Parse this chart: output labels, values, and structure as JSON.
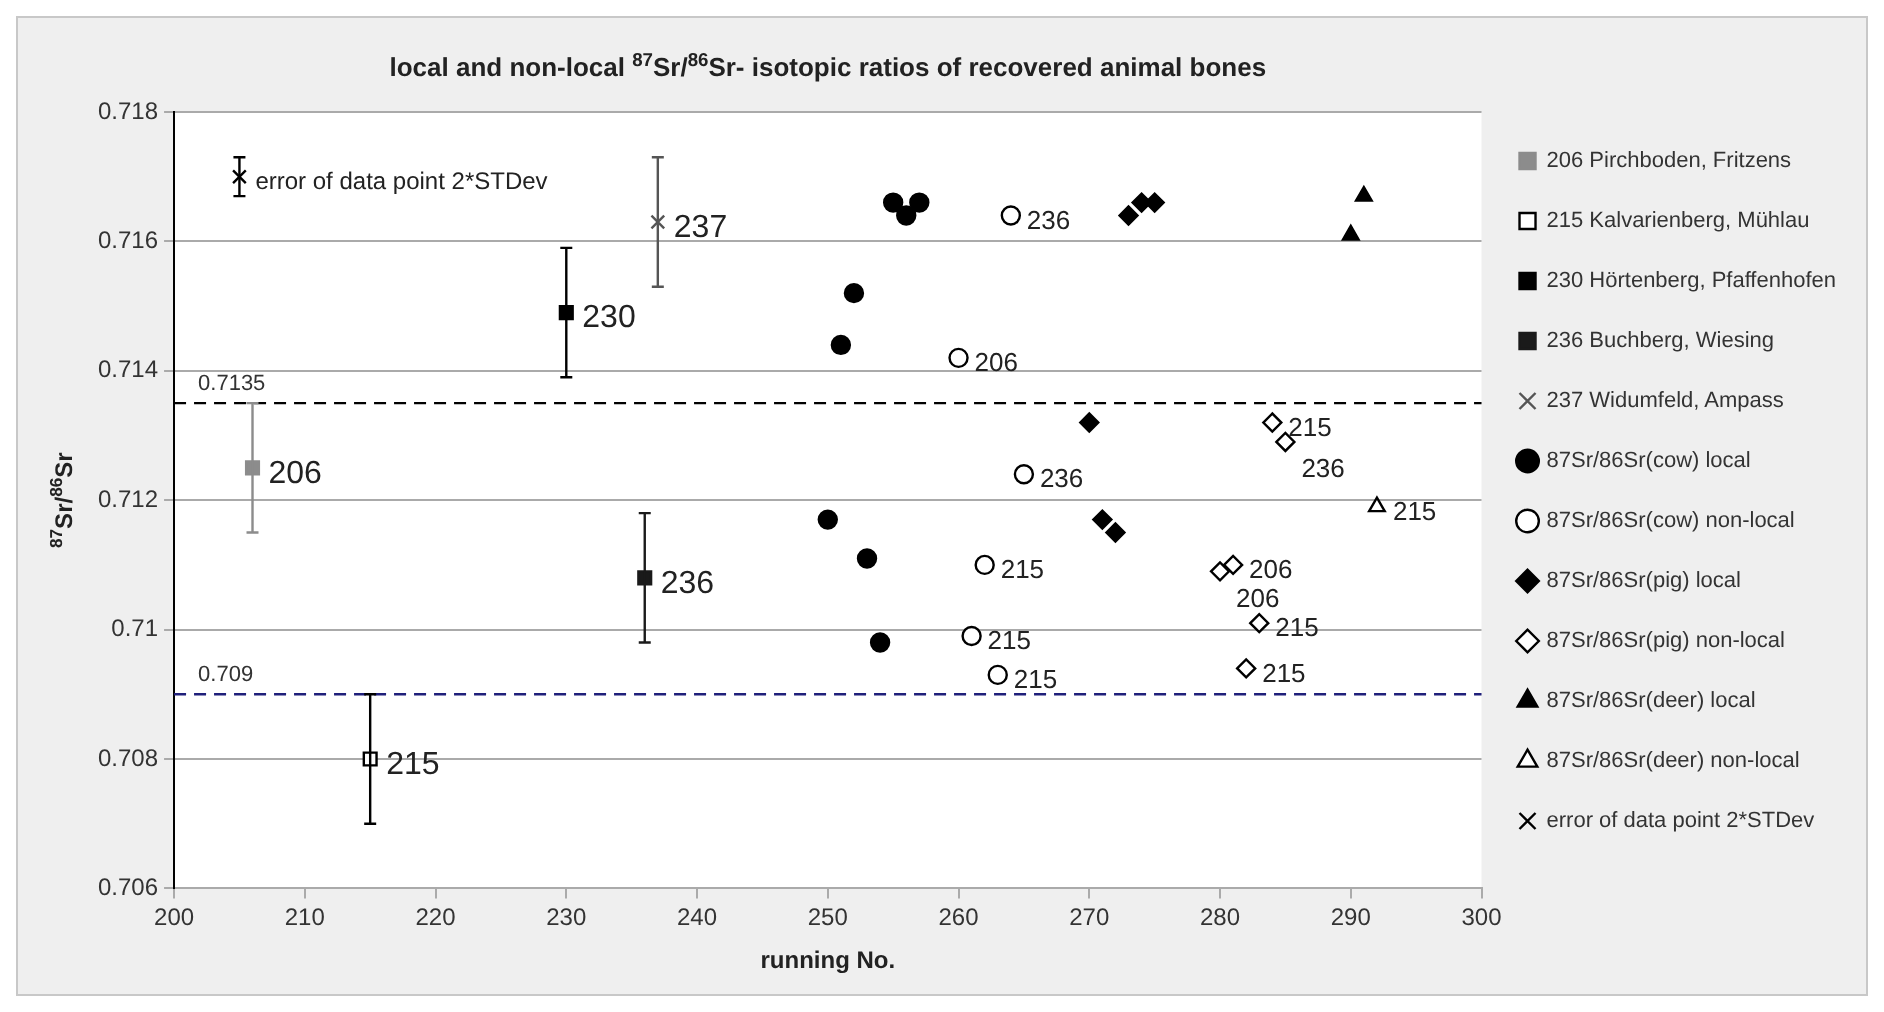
{
  "chart_data": {
    "type": "scatter",
    "title": "local and non-local $^{87}$Sr/$^{86}$Sr- isotopic ratios of recovered animal bones",
    "xlabel": "running No.",
    "ylabel": "$^{87}$Sr/$^{86}$Sr",
    "xlim": [
      200,
      300
    ],
    "xticks": [
      200,
      210,
      220,
      230,
      240,
      250,
      260,
      270,
      280,
      290,
      300
    ],
    "ylim": [
      0.706,
      0.718
    ],
    "yticks": [
      0.706,
      0.708,
      0.71,
      0.712,
      0.714,
      0.716,
      0.718
    ],
    "grid": "y",
    "legend": "right",
    "line_style": "dashed",
    "ref_lines": [
      {
        "axis": "y",
        "value": 0.7135,
        "label": "0.7135",
        "color": "#000000"
      },
      {
        "axis": "y",
        "value": 0.709,
        "label": "0.709",
        "color": "#1f1f7a"
      }
    ],
    "annotations": [
      {
        "text": "error of data point 2*STDev",
        "x": 205,
        "y": 0.717
      },
      {
        "text": "206",
        "x": 206,
        "y": 0.7125
      },
      {
        "text": "215",
        "x": 215,
        "y": 0.708
      },
      {
        "text": "230",
        "x": 230,
        "y": 0.7149
      },
      {
        "text": "236",
        "x": 236,
        "y": 0.7108
      },
      {
        "text": "237",
        "x": 237,
        "y": 0.7163
      },
      {
        "text": "206",
        "x": 260,
        "y": 0.7142
      },
      {
        "text": "215",
        "x": 261,
        "y": 0.7099
      },
      {
        "text": "215",
        "x": 262,
        "y": 0.711
      },
      {
        "text": "215",
        "x": 263,
        "y": 0.7093
      },
      {
        "text": "236",
        "x": 264,
        "y": 0.7164
      },
      {
        "text": "236",
        "x": 265,
        "y": 0.7124
      },
      {
        "text": "206",
        "x": 281,
        "y": 0.711
      },
      {
        "text": "206",
        "x": 280,
        "y": 0.7109
      },
      {
        "text": "215",
        "x": 282,
        "y": 0.7094
      },
      {
        "text": "215",
        "x": 283,
        "y": 0.7101
      },
      {
        "text": "215",
        "x": 284,
        "y": 0.7132
      },
      {
        "text": "236",
        "x": 285,
        "y": 0.7129
      },
      {
        "text": "215",
        "x": 292,
        "y": 0.7119
      }
    ],
    "series": [
      {
        "name": "206 Pirchboden, Fritzens",
        "color": "#8c8c8c",
        "marker": "square",
        "x": [
          206
        ],
        "values": [
          0.7125
        ],
        "errors": [
          0.001
        ]
      },
      {
        "name": "215 Kalvarienberg, Mühlau",
        "color": "#ffffff",
        "marker": "square",
        "x": [
          215
        ],
        "values": [
          0.708
        ],
        "errors": [
          0.001
        ]
      },
      {
        "name": "230 Hörtenberg, Pfaffenhofen",
        "color": "#000000",
        "marker": "square",
        "x": [
          230
        ],
        "values": [
          0.7149
        ],
        "errors": [
          0.001
        ]
      },
      {
        "name": "236 Buchberg, Wiesing",
        "color": "#1a1a1a",
        "marker": "square",
        "x": [
          236
        ],
        "values": [
          0.7108
        ],
        "errors": [
          0.001
        ]
      },
      {
        "name": "237 Widumfeld, Ampass",
        "color": "#555555",
        "marker": "cross",
        "x": [
          237
        ],
        "values": [
          0.7163
        ],
        "errors": [
          0.001
        ]
      },
      {
        "name": "87Sr/86Sr(cow) local",
        "color": "#000000",
        "marker": "circle",
        "x": [
          250,
          251,
          252,
          253,
          254,
          255,
          256,
          257
        ],
        "values": [
          0.7117,
          0.7144,
          0.7152,
          0.7111,
          0.7098,
          0.7166,
          0.7164,
          0.7166
        ]
      },
      {
        "name": "87Sr/86Sr(cow) non-local",
        "color": "#ffffff",
        "marker": "circle",
        "x": [
          260,
          261,
          262,
          263,
          264,
          265
        ],
        "values": [
          0.7142,
          0.7099,
          0.711,
          0.7093,
          0.7164,
          0.7124
        ]
      },
      {
        "name": "87Sr/86Sr(pig) local",
        "color": "#000000",
        "marker": "diamond",
        "x": [
          270,
          271,
          272,
          273,
          274,
          275
        ],
        "values": [
          0.7132,
          0.7117,
          0.7115,
          0.7164,
          0.7166,
          0.7166
        ]
      },
      {
        "name": "87Sr/86Sr(pig) non-local",
        "color": "#ffffff",
        "marker": "diamond",
        "x": [
          280,
          281,
          282,
          283,
          284,
          285
        ],
        "values": [
          0.7109,
          0.711,
          0.7094,
          0.7101,
          0.7132,
          0.7129
        ]
      },
      {
        "name": "87Sr/86Sr(deer) local",
        "color": "#000000",
        "marker": "triangle",
        "x": [
          290,
          291
        ],
        "values": [
          0.7161,
          0.7167
        ]
      },
      {
        "name": "87Sr/86Sr(deer) non-local",
        "color": "#ffffff",
        "marker": "triangle",
        "x": [
          292
        ],
        "values": [
          0.7119
        ]
      },
      {
        "name": "error of data point 2*STDev",
        "color": "#000000",
        "marker": "cross",
        "x": [
          205
        ],
        "values": [
          0.717
        ],
        "errors": [
          0.0003
        ]
      }
    ]
  }
}
